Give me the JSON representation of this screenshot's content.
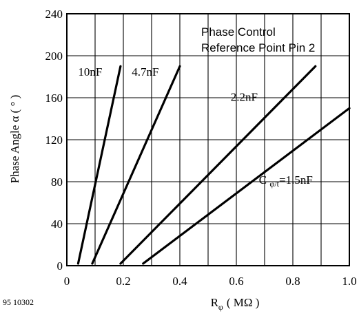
{
  "chart_data": {
    "type": "line",
    "title": "",
    "annotation_lines": [
      "Phase Control",
      "Reference Point Pin 2"
    ],
    "xlabel": "R",
    "xlabel_sub": "φ",
    "xlabel_unit": "( MΩ )",
    "ylabel": "Phase Angle α   ( ° )",
    "xlim": [
      0,
      1.0
    ],
    "ylim": [
      0,
      240
    ],
    "x_ticks": [
      0,
      0.2,
      0.4,
      0.6,
      0.8,
      1.0
    ],
    "x_tick_labels": [
      "0",
      "0.2",
      "0.4",
      "0.6",
      "0.8",
      "1.0"
    ],
    "y_ticks": [
      0,
      40,
      80,
      120,
      160,
      200,
      240
    ],
    "y_tick_labels": [
      "0",
      "40",
      "80",
      "120",
      "160",
      "200",
      "240"
    ],
    "x_grid_minor_step": 0.1,
    "grid": true,
    "series": [
      {
        "name": "10nF",
        "x": [
          0.04,
          0.19
        ],
        "y": [
          2,
          190
        ]
      },
      {
        "name": "4.7nF",
        "x": [
          0.09,
          0.4
        ],
        "y": [
          2,
          190
        ]
      },
      {
        "name": "2.2nF",
        "x": [
          0.19,
          0.88
        ],
        "y": [
          2,
          190
        ]
      },
      {
        "name": "C φ/t=1.5nF",
        "x": [
          0.27,
          1.0
        ],
        "y": [
          2,
          150
        ]
      }
    ],
    "series_labels": [
      {
        "text": "10nF",
        "x": 0.04,
        "y": 181
      },
      {
        "text": "4.7nF",
        "x": 0.23,
        "y": 181
      },
      {
        "text": "2.2nF",
        "x": 0.58,
        "y": 157
      },
      {
        "prefix": "C ",
        "sub": "φ/t",
        "suffix": "=1.5nF",
        "x": 0.68,
        "y": 78
      }
    ],
    "figure_id": "95 10302"
  }
}
